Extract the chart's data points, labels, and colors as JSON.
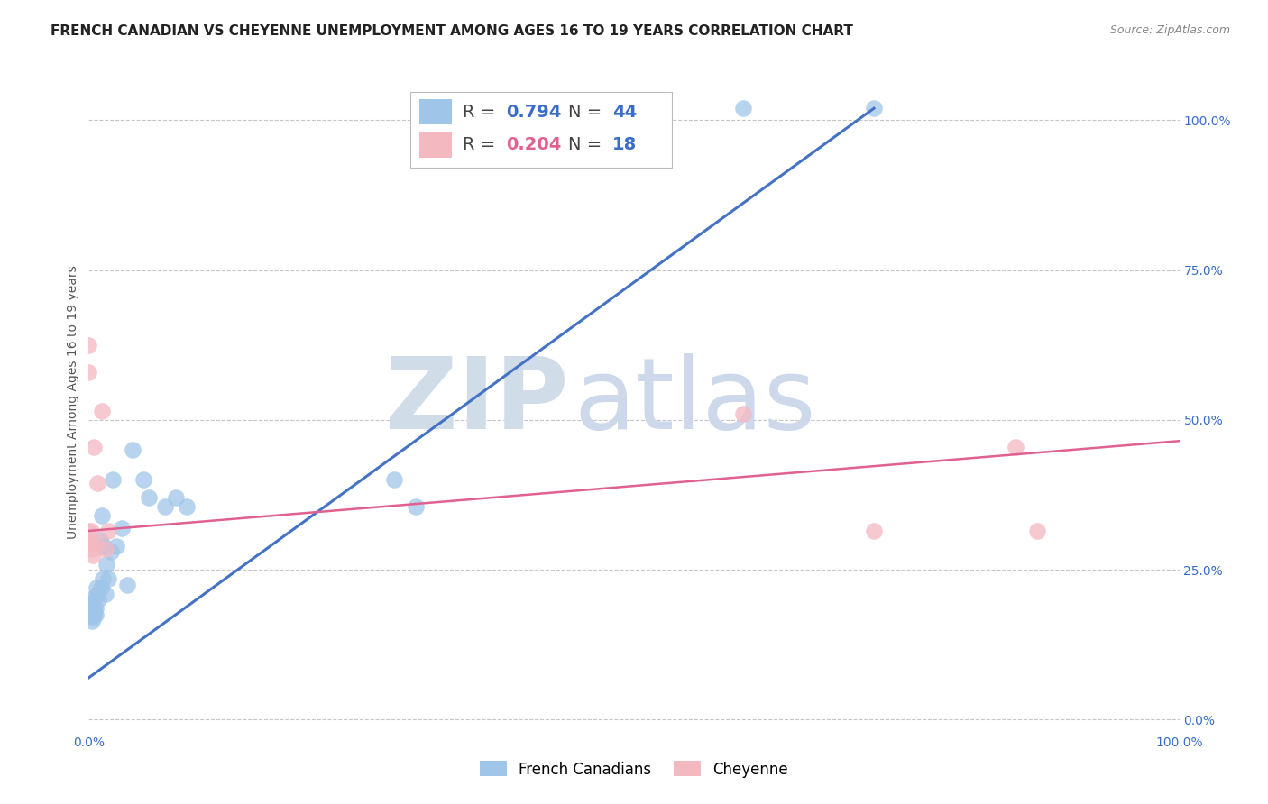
{
  "title": "FRENCH CANADIAN VS CHEYENNE UNEMPLOYMENT AMONG AGES 16 TO 19 YEARS CORRELATION CHART",
  "source": "Source: ZipAtlas.com",
  "ylabel": "Unemployment Among Ages 16 to 19 years",
  "xlim": [
    0.0,
    1.0
  ],
  "ylim": [
    -0.02,
    1.08
  ],
  "legend_label_blue": "French Canadians",
  "legend_label_pink": "Cheyenne",
  "blue_color": "#9fc5e8",
  "pink_color": "#f4b8c1",
  "blue_line_color": "#4472c4",
  "pink_line_color": "#e06090",
  "watermark_zip": "ZIP",
  "watermark_atlas": "atlas",
  "watermark_color_zip": "#d0dff5",
  "watermark_color_atlas": "#c8d8f0",
  "background_color": "#ffffff",
  "grid_color": "#c0c0c0",
  "blue_scatter_x": [
    0.0,
    0.0,
    0.001,
    0.001,
    0.002,
    0.002,
    0.002,
    0.003,
    0.003,
    0.003,
    0.003,
    0.004,
    0.004,
    0.004,
    0.005,
    0.005,
    0.006,
    0.006,
    0.007,
    0.008,
    0.009,
    0.01,
    0.011,
    0.012,
    0.013,
    0.014,
    0.015,
    0.016,
    0.018,
    0.02,
    0.022,
    0.025,
    0.03,
    0.035,
    0.04,
    0.05,
    0.055,
    0.07,
    0.08,
    0.09,
    0.28,
    0.3,
    0.6,
    0.72
  ],
  "blue_scatter_y": [
    0.18,
    0.2,
    0.175,
    0.185,
    0.175,
    0.185,
    0.195,
    0.165,
    0.175,
    0.185,
    0.195,
    0.17,
    0.18,
    0.19,
    0.175,
    0.185,
    0.175,
    0.185,
    0.22,
    0.21,
    0.2,
    0.3,
    0.22,
    0.34,
    0.235,
    0.29,
    0.21,
    0.26,
    0.235,
    0.28,
    0.4,
    0.29,
    0.32,
    0.225,
    0.45,
    0.4,
    0.37,
    0.355,
    0.37,
    0.355,
    0.4,
    0.355,
    1.02,
    1.02
  ],
  "pink_scatter_x": [
    0.0,
    0.0,
    0.0,
    0.0,
    0.001,
    0.002,
    0.003,
    0.004,
    0.005,
    0.007,
    0.008,
    0.012,
    0.015,
    0.018,
    0.6,
    0.72,
    0.85,
    0.87
  ],
  "pink_scatter_y": [
    0.295,
    0.315,
    0.58,
    0.625,
    0.295,
    0.315,
    0.285,
    0.275,
    0.455,
    0.295,
    0.395,
    0.515,
    0.285,
    0.315,
    0.51,
    0.315,
    0.455,
    0.315
  ],
  "blue_line_x0": 0.0,
  "blue_line_y0": 0.07,
  "blue_line_x1": 0.72,
  "blue_line_y1": 1.02,
  "pink_line_x0": 0.0,
  "pink_line_y0": 0.315,
  "pink_line_x1": 1.0,
  "pink_line_y1": 0.465,
  "r_blue": "0.794",
  "n_blue": "44",
  "r_pink": "0.204",
  "n_pink": "18",
  "title_fontsize": 11,
  "axis_label_fontsize": 10,
  "tick_fontsize": 10,
  "legend_fontsize": 14,
  "r_n_text_color": "#3a6dc8",
  "r_label_color": "#555555"
}
